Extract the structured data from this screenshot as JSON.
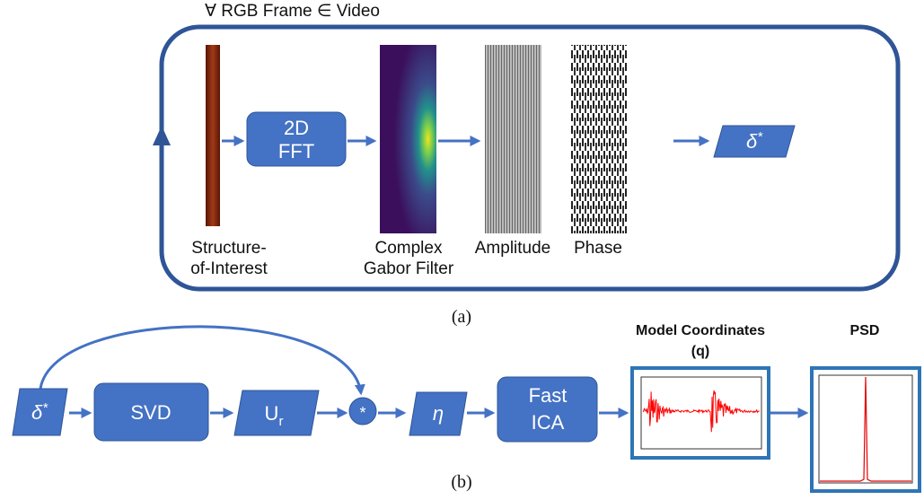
{
  "panel_a": {
    "loop_label": "∀ RGB Frame ∈ Video",
    "fft_box": [
      "2D",
      "FFT"
    ],
    "structure_label": [
      "Structure-",
      "of-Interest"
    ],
    "gabor_label": [
      "Complex",
      "Gabor Filter"
    ],
    "amplitude_label": "Amplitude",
    "phase_label": "Phase",
    "output": {
      "base": "δ",
      "sup": "*"
    },
    "caption": "(a)"
  },
  "panel_b": {
    "input": {
      "base": "δ",
      "sup": "*"
    },
    "svd_box": "SVD",
    "u_box": {
      "base": "U",
      "sub": "r"
    },
    "multiply": "*",
    "eta_box": "η",
    "ica_box": [
      "Fast",
      "ICA"
    ],
    "model_title": [
      "Model Coordinates",
      "(q)"
    ],
    "psd_title": "PSD",
    "caption": "(b)"
  }
}
